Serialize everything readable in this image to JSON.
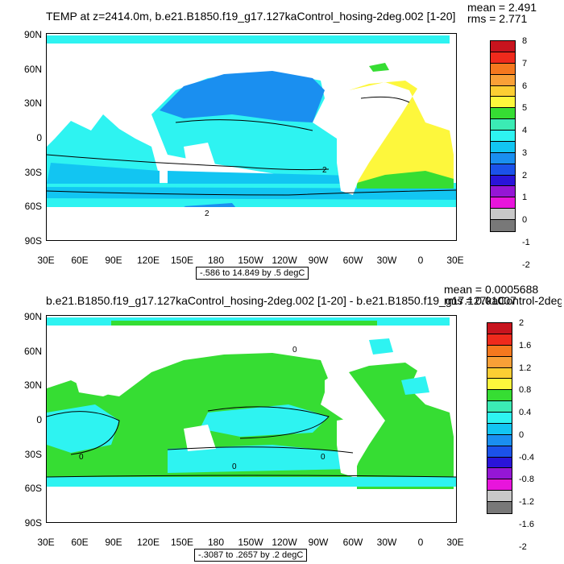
{
  "panel1": {
    "title": "TEMP at z=2414.0m, b.e21.B1850.f19_g17.127kaControl_hosing-2deg.002 [1-20]",
    "mean": "mean = 2.491",
    "rms": "rms = 2.771",
    "range": "-.586 to 14.849 by .5 degC",
    "contour_labels": [
      "2",
      "2"
    ],
    "colorbar": {
      "labels": [
        "8",
        "7",
        "6",
        "5",
        "4",
        "3",
        "2",
        "1",
        "0",
        "-1",
        "-2"
      ],
      "colors": [
        "#c8141e",
        "#ef2a1c",
        "#f5781e",
        "#f9a037",
        "#fcce33",
        "#fdf73c",
        "#36dd33",
        "#3bebb4",
        "#2ef3f1",
        "#12c5f2",
        "#1a8ff0",
        "#1b52ea",
        "#2a14d9",
        "#9516d5",
        "#e815dc",
        "#c8c8c8",
        "#787878"
      ]
    }
  },
  "panel2": {
    "title": "b.e21.B1850.f19_g17.127kaControl_hosing-2deg.002 [1-20] - b.e21.B1850.f19_g17.127kaControl-2deg.",
    "mean": "mean = 0.0005688",
    "rms": "rms = 0.01007",
    "range": "-.3087 to .2657 by .2 degC",
    "contour_labels": [
      "0",
      "0",
      "0",
      "0"
    ],
    "colorbar": {
      "labels": [
        "2",
        "1.6",
        "1.2",
        "0.8",
        "0.4",
        "0",
        "-0.4",
        "-0.8",
        "-1.2",
        "-1.6",
        "-2"
      ],
      "colors": [
        "#c8141e",
        "#ef2a1c",
        "#f5781e",
        "#f9a037",
        "#fcce33",
        "#fdf73c",
        "#36dd33",
        "#3bebb4",
        "#2ef3f1",
        "#12c5f2",
        "#1a8ff0",
        "#1b52ea",
        "#2a14d9",
        "#9516d5",
        "#e815dc",
        "#c8c8c8",
        "#787878"
      ]
    }
  },
  "axes": {
    "y_labels": [
      "90N",
      "60N",
      "30N",
      "0",
      "30S",
      "60S",
      "90S"
    ],
    "x_labels": [
      "30E",
      "60E",
      "90E",
      "120E",
      "150E",
      "180",
      "150W",
      "120W",
      "90W",
      "60W",
      "30W",
      "0",
      "30E"
    ]
  },
  "colors": {
    "ocean_cyan": "#2ef3f1",
    "ocean_lightcyan": "#3bebb4",
    "ocean_blue": "#12c5f2",
    "ocean_darkblue": "#1a8ff0",
    "atl_yellow": "#fdf73c",
    "green": "#36dd33",
    "land": "#ffffff"
  }
}
